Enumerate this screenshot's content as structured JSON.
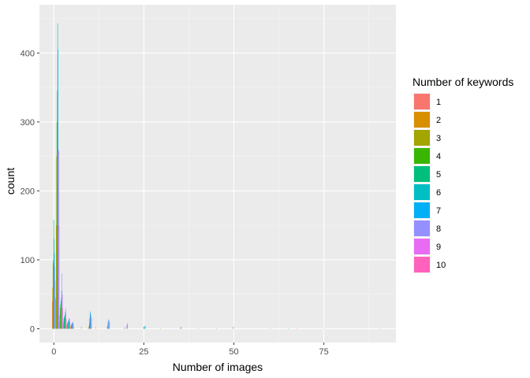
{
  "chart_data": {
    "type": "bar",
    "title": "",
    "xlabel": "Number of images",
    "ylabel": "count",
    "xlim": [
      -4,
      95
    ],
    "ylim": [
      -20,
      470
    ],
    "x_ticks": [
      0,
      25,
      50,
      75
    ],
    "x_tick_labels": [
      "0",
      "25",
      "50",
      "75"
    ],
    "y_ticks": [
      0,
      100,
      200,
      300,
      400
    ],
    "y_tick_labels": [
      "0",
      "100",
      "200",
      "300",
      "400"
    ],
    "grid": true,
    "legend_position": "right",
    "legend_title": "Number of keywords",
    "series": [
      {
        "name": "1",
        "color": "#F8766D",
        "x": [
          0,
          1,
          2,
          3,
          4,
          5,
          10,
          20,
          68
        ],
        "values": [
          40,
          42,
          10,
          6,
          4,
          2,
          2,
          1,
          1
        ]
      },
      {
        "name": "2",
        "color": "#D89000",
        "x": [
          0,
          1,
          2,
          3,
          4,
          5,
          8,
          12,
          30
        ],
        "values": [
          60,
          150,
          20,
          10,
          6,
          4,
          3,
          2,
          1
        ]
      },
      {
        "name": "3",
        "color": "#A3A500",
        "x": [
          0,
          1,
          2,
          3,
          4,
          5,
          10,
          20,
          50
        ],
        "values": [
          95,
          250,
          30,
          15,
          8,
          5,
          4,
          2,
          1
        ]
      },
      {
        "name": "4",
        "color": "#39B600",
        "x": [
          0,
          1,
          2,
          3,
          4,
          5,
          10,
          15,
          50
        ],
        "values": [
          100,
          300,
          35,
          16,
          9,
          6,
          8,
          3,
          3
        ]
      },
      {
        "name": "5",
        "color": "#00BF7D",
        "x": [
          0,
          1,
          2,
          3,
          4,
          5,
          10,
          15,
          25
        ],
        "values": [
          158,
          345,
          40,
          18,
          10,
          7,
          15,
          6,
          2
        ]
      },
      {
        "name": "6",
        "color": "#00BFC4",
        "x": [
          0,
          1,
          2,
          3,
          4,
          5,
          10,
          15,
          25,
          35
        ],
        "values": [
          130,
          443,
          45,
          20,
          12,
          8,
          22,
          10,
          3,
          1
        ]
      },
      {
        "name": "7",
        "color": "#00B0F6",
        "x": [
          0,
          1,
          2,
          3,
          4,
          5,
          10,
          15,
          25,
          40,
          45,
          60,
          65,
          75
        ],
        "values": [
          110,
          405,
          55,
          25,
          14,
          9,
          25,
          12,
          4,
          1,
          1,
          1,
          1,
          1
        ]
      },
      {
        "name": "8",
        "color": "#9590FF",
        "x": [
          0,
          1,
          2,
          3,
          4,
          5,
          10,
          15,
          20,
          35
        ],
        "values": [
          90,
          260,
          80,
          30,
          16,
          10,
          20,
          14,
          5,
          2
        ]
      },
      {
        "name": "9",
        "color": "#E76BF3",
        "x": [
          0,
          1,
          2,
          3,
          4,
          5,
          10,
          15,
          20,
          35
        ],
        "values": [
          70,
          258,
          50,
          22,
          14,
          9,
          18,
          12,
          6,
          3
        ]
      },
      {
        "name": "10",
        "color": "#FF62BC",
        "x": [
          0,
          1,
          2,
          3,
          4,
          5,
          10,
          15,
          20,
          25,
          90
        ],
        "values": [
          45,
          150,
          30,
          14,
          10,
          6,
          15,
          10,
          8,
          4,
          1
        ]
      }
    ]
  }
}
